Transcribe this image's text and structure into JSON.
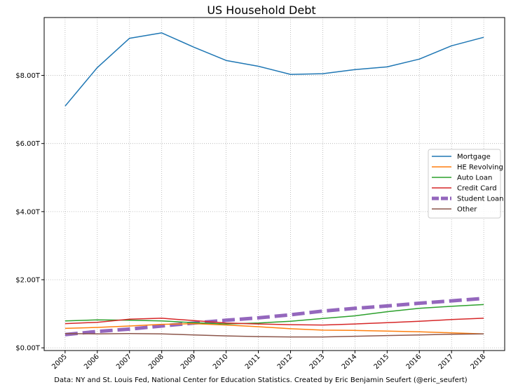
{
  "chart_data": {
    "type": "line",
    "title": "US Household Debt",
    "xlabel": "",
    "ylabel": "",
    "caption": "Data: NY and St. Louis Fed, National Center for Education Statistics. Created by Eric Benjamin Seufert (@eric_seufert)",
    "x": [
      "2005",
      "2006",
      "2007",
      "2008",
      "2009",
      "2010",
      "2011",
      "2012",
      "2013",
      "2014",
      "2015",
      "2016",
      "2017",
      "2018"
    ],
    "y_ticks": [
      0,
      2,
      4,
      6,
      8
    ],
    "y_tick_labels": [
      "$0.00T",
      "$2.00T",
      "$4.00T",
      "$6.00T",
      "$8.00T"
    ],
    "ylim": [
      -0.08,
      9.7
    ],
    "grid": true,
    "legend_position": "center-right",
    "series": [
      {
        "name": "Mortgage",
        "color": "#1f77b4",
        "style": "solid",
        "values": [
          7.1,
          8.23,
          9.09,
          9.25,
          8.83,
          8.44,
          8.27,
          8.03,
          8.05,
          8.17,
          8.25,
          8.48,
          8.87,
          9.12
        ]
      },
      {
        "name": "HE Revolving",
        "color": "#ff7f0e",
        "style": "solid",
        "values": [
          0.57,
          0.6,
          0.64,
          0.69,
          0.71,
          0.67,
          0.62,
          0.56,
          0.52,
          0.51,
          0.49,
          0.47,
          0.44,
          0.41
        ]
      },
      {
        "name": "Auto Loan",
        "color": "#2ca02c",
        "style": "solid",
        "values": [
          0.79,
          0.82,
          0.81,
          0.79,
          0.74,
          0.7,
          0.73,
          0.78,
          0.86,
          0.94,
          1.06,
          1.16,
          1.22,
          1.27
        ]
      },
      {
        "name": "Credit Card",
        "color": "#d62728",
        "style": "solid",
        "values": [
          0.71,
          0.75,
          0.84,
          0.87,
          0.8,
          0.73,
          0.7,
          0.68,
          0.67,
          0.7,
          0.74,
          0.78,
          0.83,
          0.87
        ]
      },
      {
        "name": "Student Loan",
        "color": "#9467bd",
        "style": "thick-dashed",
        "values": [
          0.39,
          0.48,
          0.55,
          0.64,
          0.73,
          0.81,
          0.88,
          0.97,
          1.08,
          1.16,
          1.23,
          1.31,
          1.38,
          1.45
        ]
      },
      {
        "name": "Other",
        "color": "#8c564b",
        "style": "solid",
        "values": [
          0.42,
          0.41,
          0.42,
          0.41,
          0.38,
          0.35,
          0.33,
          0.32,
          0.32,
          0.34,
          0.36,
          0.38,
          0.4,
          0.41
        ]
      }
    ]
  }
}
